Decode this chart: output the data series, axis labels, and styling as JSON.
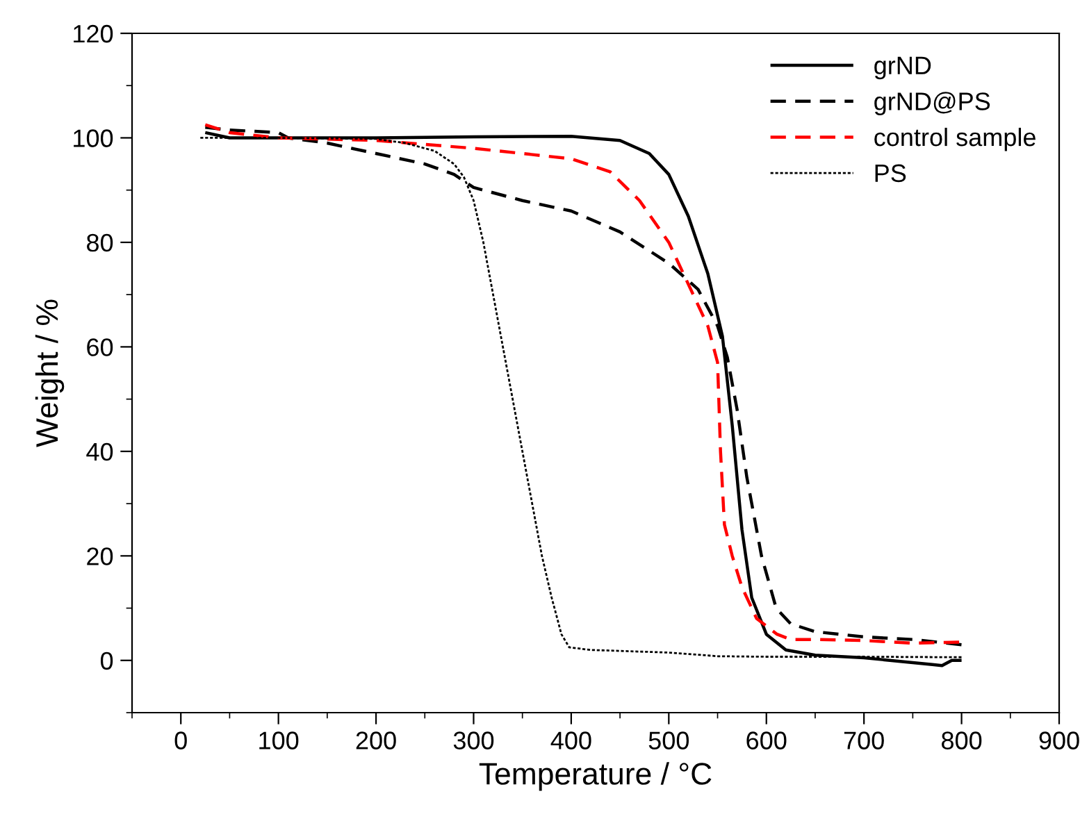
{
  "chart_data": {
    "type": "line",
    "xlabel": "Temperature / °C",
    "ylabel": "Weight / %",
    "xlim": [
      -50,
      900
    ],
    "xticks": [
      0,
      100,
      200,
      300,
      400,
      500,
      600,
      700,
      800,
      900
    ],
    "ylim": [
      -10,
      120
    ],
    "yticks": [
      0,
      20,
      40,
      60,
      80,
      100,
      120
    ],
    "grid": false,
    "legend": "top right",
    "marker": "none",
    "series": [
      {
        "name": "grND",
        "color": "#000000",
        "line_style": "solid",
        "x": [
          25,
          50,
          100,
          200,
          300,
          400,
          450,
          480,
          500,
          520,
          540,
          555,
          565,
          575,
          585,
          600,
          620,
          650,
          700,
          770,
          780,
          790,
          800
        ],
        "values": [
          101,
          100,
          100,
          100,
          100.2,
          100.3,
          99.5,
          97,
          93,
          85,
          74,
          62,
          45,
          25,
          12,
          5,
          2,
          1,
          0.5,
          -0.8,
          -1,
          0,
          0
        ]
      },
      {
        "name": "grND@PS",
        "color": "#000000",
        "line_style": "dashed",
        "x": [
          25,
          50,
          100,
          110,
          150,
          200,
          250,
          280,
          300,
          350,
          400,
          450,
          500,
          530,
          550,
          560,
          570,
          580,
          595,
          610,
          625,
          650,
          700,
          750,
          800
        ],
        "values": [
          102,
          101.5,
          101,
          100,
          99,
          97,
          95,
          93,
          90.5,
          88,
          86,
          82,
          76,
          71,
          64,
          58,
          48,
          35,
          20,
          10,
          7,
          5.5,
          4.5,
          4,
          3
        ]
      },
      {
        "name": "control sample",
        "color": "#ff0000",
        "line_style": "dashed",
        "x": [
          25,
          50,
          100,
          200,
          300,
          350,
          400,
          440,
          470,
          500,
          520,
          540,
          550,
          553,
          557,
          565,
          575,
          590,
          611,
          625,
          650,
          700,
          750,
          800
        ],
        "values": [
          102.5,
          101,
          100,
          99.5,
          98,
          97,
          96,
          93.5,
          88,
          80,
          72,
          64,
          57,
          40,
          26,
          20,
          14,
          8,
          5,
          4,
          4,
          3.8,
          3.3,
          3.5
        ]
      },
      {
        "name": "PS",
        "color": "#000000",
        "line_style": "dotted",
        "x": [
          20,
          100,
          200,
          230,
          260,
          280,
          290,
          300,
          310,
          320,
          330,
          340,
          350,
          360,
          370,
          380,
          390,
          398,
          420,
          500,
          550,
          600,
          700,
          800
        ],
        "values": [
          100,
          100,
          99.8,
          99,
          97.5,
          95,
          92.5,
          88,
          80,
          70,
          60,
          50,
          40,
          30,
          20,
          12,
          5,
          2.5,
          2,
          1.5,
          0.8,
          0.7,
          0.7,
          0.6
        ]
      }
    ]
  }
}
